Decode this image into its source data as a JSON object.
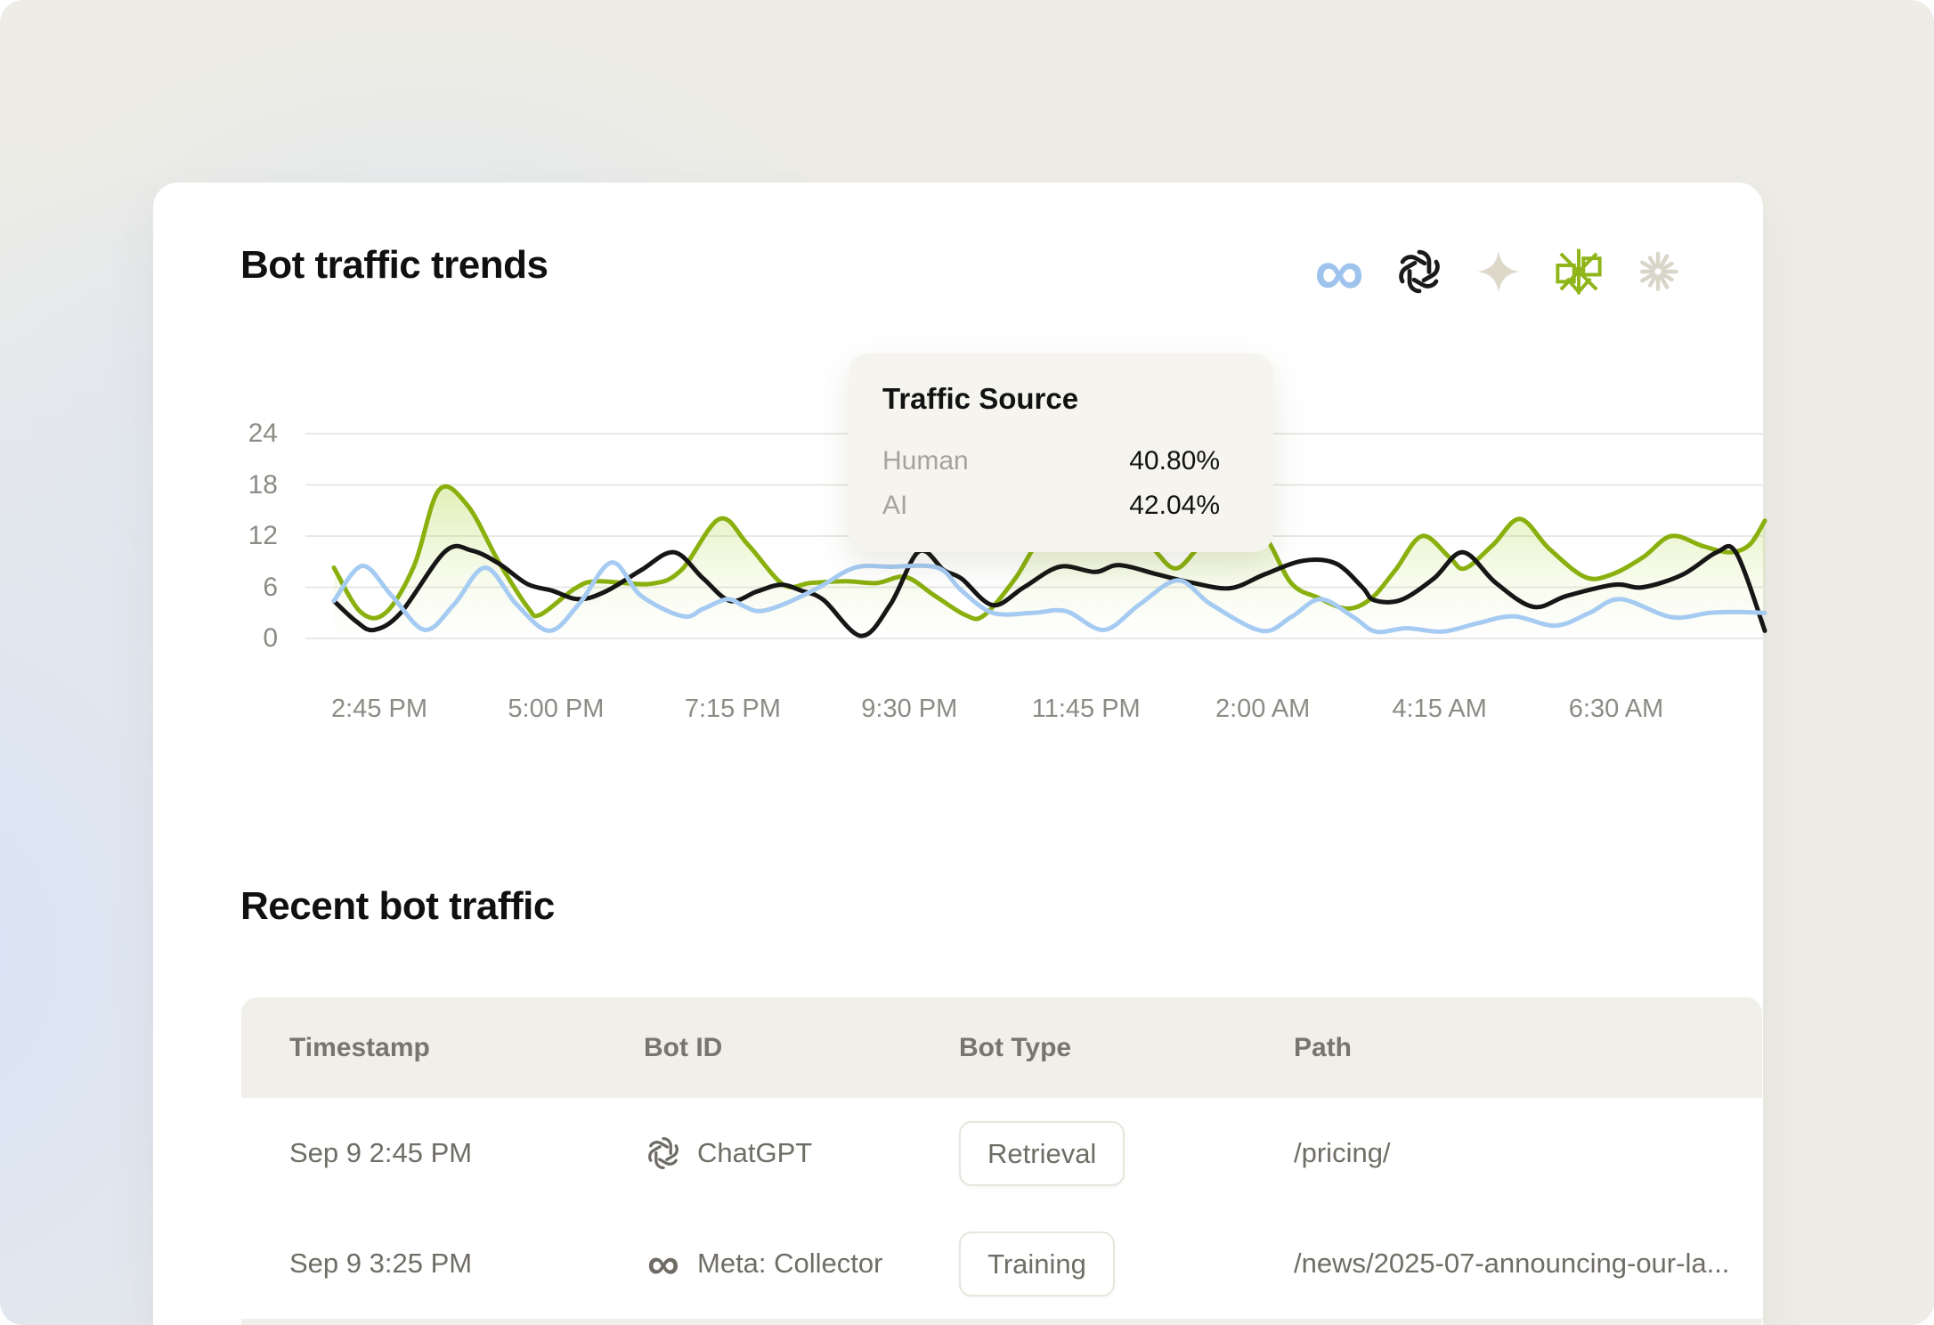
{
  "header": {
    "title": "Bot traffic trends",
    "icons": [
      {
        "name": "meta-icon",
        "color": "#9ec4ee"
      },
      {
        "name": "openai-icon",
        "color": "#1a1a1a"
      },
      {
        "name": "sparkle-icon",
        "color": "#ddd8ca"
      },
      {
        "name": "burst-icon",
        "color": "#8fb519"
      },
      {
        "name": "starburst-icon",
        "color": "#d8d5c9"
      }
    ]
  },
  "tooltip": {
    "title": "Traffic Source",
    "rows": [
      {
        "label": "Human",
        "value": "40.80%"
      },
      {
        "label": "AI",
        "value": "42.04%"
      }
    ]
  },
  "chart_data": {
    "type": "line",
    "title": "Bot traffic trends",
    "grid": "horizontal",
    "ylim": [
      0,
      24
    ],
    "y_ticks": [
      24,
      18,
      12,
      6,
      0
    ],
    "x_ticks": [
      "2:45 PM",
      "5:00 PM",
      "7:15 PM",
      "9:30 PM",
      "11:45 PM",
      "2:00 AM",
      "4:15 AM",
      "6:30 AM"
    ],
    "x_unit": "plot-px 0-1640 (ticks at 81 + i*198.4)",
    "series": [
      {
        "name": "green-area-series",
        "color": "#8ab00e",
        "style": "area-line",
        "points": [
          [
            30,
            8.3
          ],
          [
            60,
            3.1
          ],
          [
            88,
            3.0
          ],
          [
            120,
            8.5
          ],
          [
            148,
            17.4
          ],
          [
            180,
            15.6
          ],
          [
            215,
            9.0
          ],
          [
            248,
            3.6
          ],
          [
            262,
            2.8
          ],
          [
            300,
            5.8
          ],
          [
            325,
            6.7
          ],
          [
            385,
            6.4
          ],
          [
            420,
            8.0
          ],
          [
            463,
            14.0
          ],
          [
            495,
            11.0
          ],
          [
            535,
            6.3
          ],
          [
            565,
            6.5
          ],
          [
            605,
            6.7
          ],
          [
            640,
            6.5
          ],
          [
            672,
            7.2
          ],
          [
            705,
            5.0
          ],
          [
            740,
            2.7
          ],
          [
            760,
            2.7
          ],
          [
            795,
            7.0
          ],
          [
            825,
            12.0
          ],
          [
            858,
            14.5
          ],
          [
            905,
            13.5
          ],
          [
            945,
            11.0
          ],
          [
            975,
            8.2
          ],
          [
            1005,
            11.0
          ],
          [
            1045,
            13.2
          ],
          [
            1075,
            12.0
          ],
          [
            1105,
            6.5
          ],
          [
            1135,
            4.8
          ],
          [
            1168,
            3.5
          ],
          [
            1195,
            4.7
          ],
          [
            1222,
            8.0
          ],
          [
            1252,
            12.0
          ],
          [
            1283,
            9.5
          ],
          [
            1300,
            8.2
          ],
          [
            1332,
            11.0
          ],
          [
            1362,
            14.0
          ],
          [
            1395,
            10.5
          ],
          [
            1435,
            7.2
          ],
          [
            1465,
            7.5
          ],
          [
            1500,
            9.5
          ],
          [
            1532,
            12.0
          ],
          [
            1568,
            10.8
          ],
          [
            1598,
            10.1
          ],
          [
            1620,
            11.0
          ],
          [
            1637,
            13.8
          ]
        ]
      },
      {
        "name": "black-series",
        "color": "#161616",
        "style": "line",
        "points": [
          [
            30,
            4.4
          ],
          [
            55,
            2.0
          ],
          [
            75,
            1.0
          ],
          [
            105,
            3.0
          ],
          [
            155,
            10.2
          ],
          [
            185,
            10.3
          ],
          [
            215,
            8.8
          ],
          [
            247,
            6.4
          ],
          [
            275,
            5.6
          ],
          [
            305,
            4.6
          ],
          [
            335,
            5.5
          ],
          [
            375,
            8.0
          ],
          [
            412,
            10.1
          ],
          [
            445,
            7.0
          ],
          [
            475,
            4.4
          ],
          [
            505,
            5.5
          ],
          [
            532,
            6.3
          ],
          [
            555,
            5.6
          ],
          [
            580,
            4.5
          ],
          [
            622,
            0.3
          ],
          [
            655,
            4.0
          ],
          [
            687,
            10.2
          ],
          [
            715,
            8.0
          ],
          [
            735,
            7.0
          ],
          [
            770,
            3.9
          ],
          [
            805,
            6.0
          ],
          [
            845,
            8.4
          ],
          [
            885,
            7.8
          ],
          [
            912,
            8.6
          ],
          [
            955,
            7.5
          ],
          [
            995,
            6.5
          ],
          [
            1037,
            5.9
          ],
          [
            1075,
            7.5
          ],
          [
            1118,
            9.1
          ],
          [
            1155,
            8.8
          ],
          [
            1185,
            6.0
          ],
          [
            1198,
            4.5
          ],
          [
            1228,
            4.5
          ],
          [
            1265,
            7.0
          ],
          [
            1298,
            10.1
          ],
          [
            1335,
            6.5
          ],
          [
            1377,
            3.7
          ],
          [
            1415,
            5.0
          ],
          [
            1468,
            6.3
          ],
          [
            1500,
            6.0
          ],
          [
            1545,
            7.5
          ],
          [
            1583,
            10.1
          ],
          [
            1605,
            10.0
          ],
          [
            1637,
            0.9
          ]
        ]
      },
      {
        "name": "blue-series",
        "color": "#a6cbf2",
        "style": "line",
        "points": [
          [
            30,
            4.4
          ],
          [
            62,
            8.5
          ],
          [
            95,
            5.0
          ],
          [
            132,
            1.0
          ],
          [
            165,
            4.0
          ],
          [
            200,
            8.3
          ],
          [
            235,
            4.0
          ],
          [
            272,
            0.9
          ],
          [
            305,
            4.0
          ],
          [
            342,
            8.9
          ],
          [
            375,
            5.0
          ],
          [
            422,
            2.6
          ],
          [
            445,
            3.5
          ],
          [
            472,
            4.6
          ],
          [
            490,
            3.8
          ],
          [
            508,
            3.2
          ],
          [
            535,
            4.0
          ],
          [
            575,
            6.0
          ],
          [
            615,
            8.3
          ],
          [
            655,
            8.4
          ],
          [
            708,
            8.3
          ],
          [
            735,
            5.6
          ],
          [
            770,
            3.0
          ],
          [
            815,
            3.0
          ],
          [
            852,
            3.2
          ],
          [
            895,
            1.0
          ],
          [
            935,
            4.0
          ],
          [
            978,
            6.8
          ],
          [
            1015,
            4.0
          ],
          [
            1072,
            0.9
          ],
          [
            1105,
            2.5
          ],
          [
            1138,
            4.6
          ],
          [
            1175,
            2.5
          ],
          [
            1200,
            0.8
          ],
          [
            1235,
            1.2
          ],
          [
            1275,
            0.8
          ],
          [
            1315,
            1.8
          ],
          [
            1355,
            2.6
          ],
          [
            1402,
            1.5
          ],
          [
            1440,
            3.0
          ],
          [
            1475,
            4.6
          ],
          [
            1532,
            2.5
          ],
          [
            1575,
            3.0
          ],
          [
            1605,
            3.1
          ],
          [
            1637,
            3.0
          ]
        ]
      }
    ],
    "tooltip": {
      "title": "Traffic Source",
      "rows": [
        [
          "Human",
          "40.80%"
        ],
        [
          "AI",
          "42.04%"
        ]
      ]
    }
  },
  "table": {
    "title": "Recent bot traffic",
    "columns": [
      "Timestamp",
      "Bot ID",
      "Bot Type",
      "Path"
    ],
    "rows": [
      {
        "timestamp": "Sep 9 2:45 PM",
        "bot_icon": "openai",
        "bot_name": "ChatGPT",
        "bot_type": "Retrieval",
        "path": "/pricing/"
      },
      {
        "timestamp": "Sep 9 3:25 PM",
        "bot_icon": "meta",
        "bot_name": "Meta: Collector",
        "bot_type": "Training",
        "path": "/news/2025-07-announcing-our-la..."
      }
    ]
  },
  "colors": {
    "page_bg": "#edece6",
    "page_bg_blue": "#d9e3f6",
    "card_bg": "#ffffff",
    "grid": "#e9e8e4",
    "axis_text": "#8c8b85",
    "line_green": "#8ab00e",
    "area_green": "#b4d84b",
    "line_black": "#161616",
    "line_blue": "#a6cbf2",
    "tooltip_bg": "#f6f4ee",
    "tooltip_label": "#a5a39a",
    "text_dark": "#121212",
    "table_header_bg": "#f0efe9",
    "table_header_text": "#77756d",
    "table_text": "#6f6d66",
    "badge_border": "#e7e5dc",
    "icon_gray": "#6e6c64",
    "meta_blue": "#9ec4ee",
    "openai_black": "#1a1a1a",
    "sparkle_beige": "#ddd8ca",
    "burst_green": "#8fb519",
    "star_gray": "#d8d5c9"
  }
}
